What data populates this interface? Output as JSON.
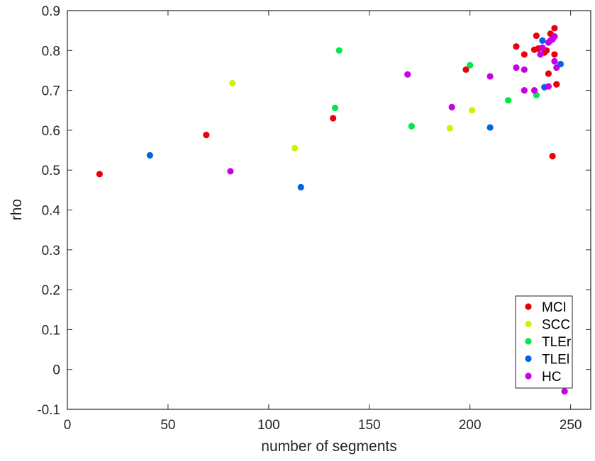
{
  "chart_data": {
    "type": "scatter",
    "title": "",
    "xlabel": "number of segments",
    "ylabel": "rho",
    "xlim": [
      0,
      260
    ],
    "ylim": [
      -0.1,
      0.9
    ],
    "x_ticks": [
      0,
      50,
      100,
      150,
      200,
      250
    ],
    "y_ticks": [
      -0.1,
      0,
      0.1,
      0.2,
      0.3,
      0.4,
      0.5,
      0.6,
      0.7,
      0.8,
      0.9
    ],
    "x_tick_labels": [
      "0",
      "50",
      "100",
      "150",
      "200",
      "250"
    ],
    "y_tick_labels": [
      "-0.1",
      "0",
      "0.1",
      "0.2",
      "0.3",
      "0.4",
      "0.5",
      "0.6",
      "0.7",
      "0.8",
      "0.9"
    ],
    "grid": false,
    "legend_position": "bottom-right",
    "series": [
      {
        "name": "MCI",
        "color": "#e8000b",
        "points": [
          [
            16,
            0.49
          ],
          [
            69,
            0.588
          ],
          [
            132,
            0.63
          ],
          [
            198,
            0.752
          ],
          [
            223,
            0.81
          ],
          [
            227,
            0.79
          ],
          [
            232,
            0.802
          ],
          [
            233,
            0.837
          ],
          [
            234,
            0.805
          ],
          [
            237,
            0.795
          ],
          [
            238,
            0.8
          ],
          [
            240,
            0.842
          ],
          [
            242,
            0.856
          ],
          [
            242,
            0.79
          ],
          [
            239,
            0.742
          ],
          [
            243,
            0.715
          ],
          [
            241,
            0.535
          ]
        ]
      },
      {
        "name": "SCC",
        "color": "#d4f000",
        "points": [
          [
            82,
            0.718
          ],
          [
            113,
            0.555
          ],
          [
            190,
            0.605
          ],
          [
            201,
            0.65
          ]
        ]
      },
      {
        "name": "TLEr",
        "color": "#00e84a",
        "points": [
          [
            135,
            0.8
          ],
          [
            133,
            0.656
          ],
          [
            171,
            0.61
          ],
          [
            200,
            0.763
          ],
          [
            219,
            0.675
          ],
          [
            233,
            0.688
          ]
        ]
      },
      {
        "name": "TLEl",
        "color": "#0064e8",
        "points": [
          [
            41,
            0.537
          ],
          [
            116,
            0.457
          ],
          [
            210,
            0.607
          ],
          [
            236,
            0.825
          ],
          [
            237,
            0.708
          ],
          [
            245,
            0.766
          ]
        ]
      },
      {
        "name": "HC",
        "color": "#c800e8",
        "points": [
          [
            81,
            0.497
          ],
          [
            169,
            0.74
          ],
          [
            191,
            0.658
          ],
          [
            210,
            0.735
          ],
          [
            223,
            0.757
          ],
          [
            227,
            0.752
          ],
          [
            227,
            0.7
          ],
          [
            232,
            0.7
          ],
          [
            235,
            0.79
          ],
          [
            236,
            0.807
          ],
          [
            239,
            0.82
          ],
          [
            240,
            0.825
          ],
          [
            241,
            0.828
          ],
          [
            242,
            0.835
          ],
          [
            239,
            0.71
          ],
          [
            242,
            0.773
          ],
          [
            243,
            0.757
          ],
          [
            247,
            -0.055
          ]
        ]
      }
    ]
  }
}
